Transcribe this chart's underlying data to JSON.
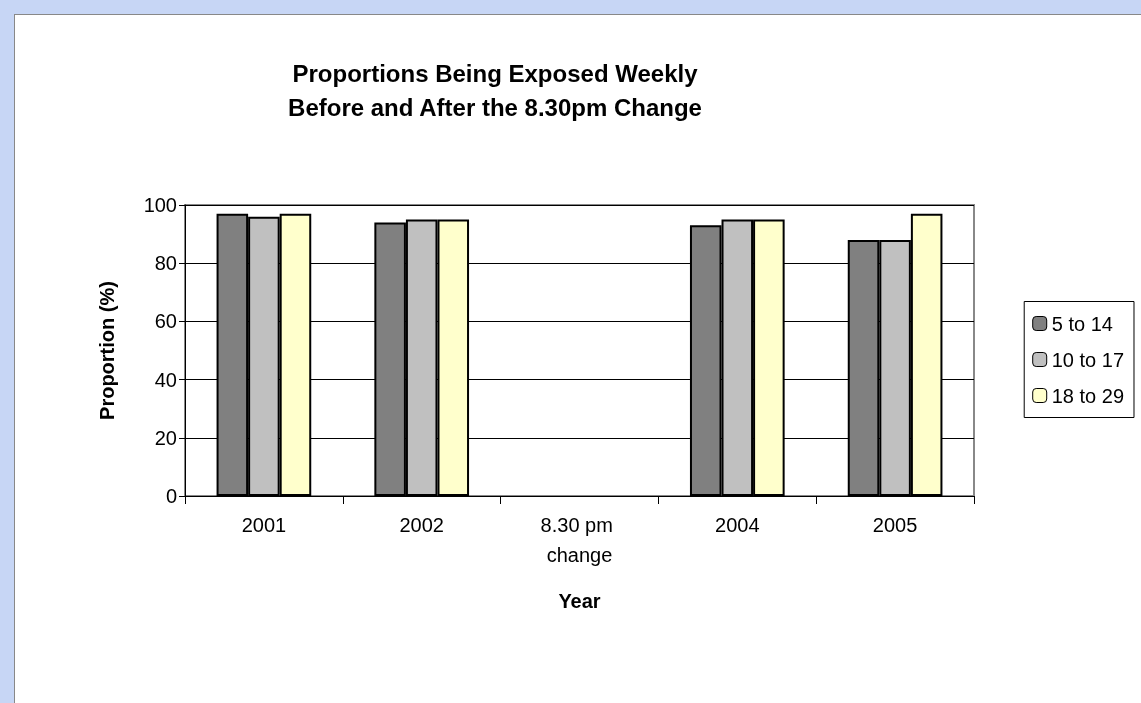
{
  "chart_data": {
    "type": "bar",
    "title": "Proportions Being Exposed Weekly\nBefore and After the 8.30pm Change",
    "xlabel": "Year",
    "ylabel": "Proportion (%)",
    "categories": [
      "2001",
      "2002",
      "8.30 pm change",
      "2004",
      "2005"
    ],
    "series": [
      {
        "name": "5 to 14",
        "color": "#808080",
        "values": [
          97,
          94,
          null,
          93,
          88
        ]
      },
      {
        "name": "10 to 17",
        "color": "#c0c0c0",
        "values": [
          96,
          95,
          null,
          95,
          88
        ]
      },
      {
        "name": "18 to 29",
        "color": "#ffffcc",
        "values": [
          97,
          95,
          null,
          95,
          97
        ]
      }
    ],
    "ylim": [
      0,
      100
    ],
    "yticks": [
      0,
      20,
      40,
      60,
      80,
      100
    ],
    "grid": "y",
    "legend": "right"
  }
}
